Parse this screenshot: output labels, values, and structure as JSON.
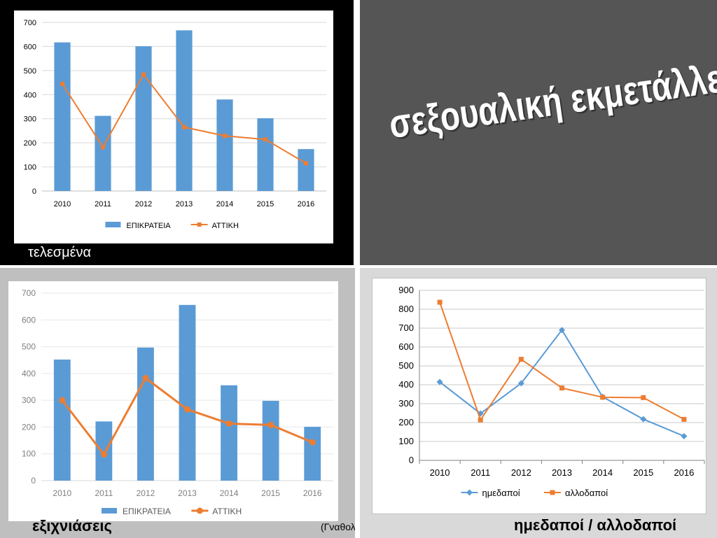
{
  "slide": {
    "title": "σεξουαλική εκμετάλλευση",
    "captions": {
      "top_left": "τελεσμένα",
      "bottom_left": "εξιχνιάσεις",
      "bottom_left_note": "(Γναθολόγιο)",
      "bottom_right": "ημεδαποί / αλλοδαποί"
    }
  },
  "colors": {
    "blue": "#5b9bd5",
    "orange": "#ed7d31",
    "grid": "#d9d9d9"
  },
  "chart_data": [
    {
      "id": "tl",
      "type": "bar",
      "categories": [
        "2010",
        "2011",
        "2012",
        "2013",
        "2014",
        "2015",
        "2016"
      ],
      "ylim": [
        0,
        700
      ],
      "yticks": [
        "0",
        "100",
        "200",
        "300",
        "400",
        "500",
        "600",
        "700"
      ],
      "grid": true,
      "legend_position": "bottom",
      "series": [
        {
          "name": "ΕΠΙΚΡΑΤΕΙΑ",
          "kind": "bar",
          "color": "#5b9bd5",
          "values": [
            617,
            312,
            601,
            667,
            380,
            302,
            174
          ]
        },
        {
          "name": "ΑΤΤΙΚΗ",
          "kind": "line",
          "marker": "square",
          "color": "#ed7d31",
          "values": [
            445,
            182,
            484,
            265,
            229,
            214,
            115
          ]
        }
      ]
    },
    {
      "id": "bl",
      "type": "bar",
      "categories": [
        "2010",
        "2011",
        "2012",
        "2013",
        "2014",
        "2015",
        "2016"
      ],
      "ylim": [
        0,
        700
      ],
      "yticks": [
        "0",
        "100",
        "200",
        "300",
        "400",
        "500",
        "600",
        "700"
      ],
      "grid": true,
      "legend_position": "bottom",
      "series": [
        {
          "name": "ΕΠΙΚΡΑΤΕΙΑ",
          "kind": "bar",
          "color": "#5b9bd5",
          "values": [
            452,
            221,
            497,
            656,
            356,
            298,
            201
          ]
        },
        {
          "name": "ΑΤΤΙΚΗ",
          "kind": "line",
          "marker": "circle",
          "color": "#ed7d31",
          "values": [
            300,
            98,
            383,
            266,
            213,
            208,
            143
          ]
        }
      ]
    },
    {
      "id": "br",
      "type": "line",
      "categories": [
        "2010",
        "2011",
        "2012",
        "2013",
        "2014",
        "2015",
        "2016"
      ],
      "ylim": [
        0,
        900
      ],
      "yticks": [
        "0",
        "100",
        "200",
        "300",
        "400",
        "500",
        "600",
        "700",
        "800",
        "900"
      ],
      "grid": true,
      "legend_position": "bottom",
      "series": [
        {
          "name": "ημεδαποί",
          "kind": "line",
          "marker": "diamond",
          "color": "#5b9bd5",
          "values": [
            415,
            248,
            408,
            690,
            336,
            218,
            128
          ]
        },
        {
          "name": "αλλοδαποί",
          "kind": "line",
          "marker": "square",
          "color": "#ed7d31",
          "values": [
            837,
            214,
            535,
            383,
            334,
            332,
            217
          ]
        }
      ]
    }
  ]
}
